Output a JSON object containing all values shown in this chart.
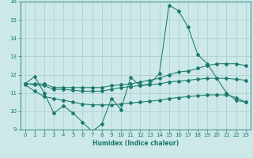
{
  "title": "",
  "xlabel": "Humidex (Indice chaleur)",
  "ylabel": "",
  "xlim": [
    -0.5,
    23.5
  ],
  "ylim": [
    9,
    16
  ],
  "yticks": [
    9,
    10,
    11,
    12,
    13,
    14,
    15,
    16
  ],
  "xticks": [
    0,
    1,
    2,
    3,
    4,
    5,
    6,
    7,
    8,
    9,
    10,
    11,
    12,
    13,
    14,
    15,
    16,
    17,
    18,
    19,
    20,
    21,
    22,
    23
  ],
  "background_color": "#cce8e8",
  "grid_color": "#aacccc",
  "line_color": "#1a7a6e",
  "line1_x": [
    0,
    1,
    2,
    3,
    4,
    5,
    6,
    7,
    8,
    9,
    10,
    11,
    12,
    13,
    14,
    15,
    16,
    17,
    18,
    19,
    20,
    21,
    22,
    23
  ],
  "line1_y": [
    11.5,
    11.9,
    11.0,
    9.9,
    10.3,
    9.9,
    9.4,
    8.9,
    9.3,
    10.7,
    10.1,
    11.85,
    11.4,
    11.5,
    12.05,
    15.8,
    15.5,
    14.6,
    13.1,
    12.6,
    11.8,
    11.0,
    10.6,
    10.5
  ],
  "line2_x": [
    0,
    1,
    2,
    3,
    4,
    5,
    6,
    7,
    8,
    9,
    10,
    11,
    12,
    13,
    14,
    15,
    16,
    17,
    18,
    19,
    20,
    21,
    22,
    23
  ],
  "line2_y": [
    11.5,
    11.5,
    11.5,
    11.3,
    11.3,
    11.3,
    11.3,
    11.3,
    11.3,
    11.4,
    11.45,
    11.5,
    11.6,
    11.7,
    11.8,
    12.0,
    12.15,
    12.2,
    12.35,
    12.5,
    12.6,
    12.6,
    12.6,
    12.5
  ],
  "line3_x": [
    0,
    1,
    2,
    3,
    4,
    5,
    6,
    7,
    8,
    9,
    10,
    11,
    12,
    13,
    14,
    15,
    16,
    17,
    18,
    19,
    20,
    21,
    22,
    23
  ],
  "line3_y": [
    11.5,
    11.45,
    11.4,
    11.2,
    11.2,
    11.15,
    11.1,
    11.1,
    11.1,
    11.2,
    11.3,
    11.35,
    11.4,
    11.45,
    11.5,
    11.6,
    11.65,
    11.7,
    11.75,
    11.8,
    11.8,
    11.8,
    11.75,
    11.7
  ],
  "line4_x": [
    0,
    1,
    2,
    3,
    4,
    5,
    6,
    7,
    8,
    9,
    10,
    11,
    12,
    13,
    14,
    15,
    16,
    17,
    18,
    19,
    20,
    21,
    22,
    23
  ],
  "line4_y": [
    11.45,
    11.1,
    10.8,
    10.7,
    10.6,
    10.5,
    10.4,
    10.35,
    10.35,
    10.35,
    10.4,
    10.45,
    10.5,
    10.55,
    10.6,
    10.7,
    10.75,
    10.8,
    10.85,
    10.9,
    10.9,
    10.9,
    10.75,
    10.5
  ]
}
